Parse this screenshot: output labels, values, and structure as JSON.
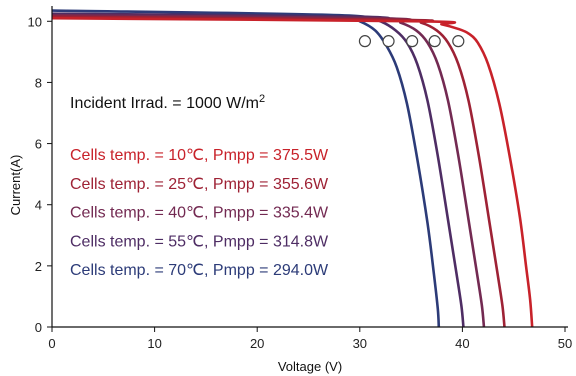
{
  "chart_data": {
    "type": "line",
    "xlabel": "Voltage  (V)",
    "ylabel": "Current(A)",
    "xlim": [
      0,
      50
    ],
    "ylim": [
      0,
      10.5
    ],
    "x_ticks": [
      "0",
      "10",
      "20",
      "30",
      "40",
      "50"
    ],
    "y_ticks": [
      "0",
      "2",
      "4",
      "6",
      "8",
      "10"
    ],
    "grid": false,
    "irradiance_label": "Incident Irrad. = 1000 W/m",
    "irradiance_sup": "2",
    "series": [
      {
        "name": "Cells temp. = 10℃, Pmpp = 375.5W",
        "color": "#c8222a",
        "points": [
          [
            0,
            10.1
          ],
          [
            36,
            10.0
          ],
          [
            38,
            9.9
          ],
          [
            39.6,
            9.75
          ],
          [
            40.6,
            9.6
          ],
          [
            41.5,
            9.3
          ],
          [
            42.5,
            8.6
          ],
          [
            43.6,
            7.3
          ],
          [
            44.6,
            5.6
          ],
          [
            45.6,
            3.6
          ],
          [
            46.2,
            2.0
          ],
          [
            46.6,
            0.9
          ],
          [
            46.8,
            0
          ]
        ],
        "mpp": [
          39.6,
          9.35
        ]
      },
      {
        "name": "Cells temp. = 25℃, Pmpp = 355.6W",
        "color": "#9e2235",
        "points": [
          [
            0,
            10.15
          ],
          [
            34,
            10.05
          ],
          [
            36,
            9.95
          ],
          [
            37.5,
            9.7
          ],
          [
            38.6,
            9.3
          ],
          [
            39.6,
            8.6
          ],
          [
            40.6,
            7.4
          ],
          [
            41.6,
            5.6
          ],
          [
            42.6,
            3.5
          ],
          [
            43.4,
            1.8
          ],
          [
            43.9,
            0.7
          ],
          [
            44.1,
            0
          ]
        ],
        "mpp": [
          37.3,
          9.35
        ]
      },
      {
        "name": "Cells temp. = 40℃, Pmpp = 335.4W",
        "color": "#732a52",
        "points": [
          [
            0,
            10.2
          ],
          [
            32,
            10.1
          ],
          [
            34,
            9.95
          ],
          [
            35.5,
            9.7
          ],
          [
            36.6,
            9.3
          ],
          [
            37.6,
            8.6
          ],
          [
            38.6,
            7.4
          ],
          [
            39.6,
            5.6
          ],
          [
            40.6,
            3.5
          ],
          [
            41.4,
            1.8
          ],
          [
            41.9,
            0.7
          ],
          [
            42.1,
            0
          ]
        ],
        "mpp": [
          35.1,
          9.35
        ]
      },
      {
        "name": "Cells temp. = 55℃, Pmpp = 314.8W",
        "color": "#4e2d64",
        "points": [
          [
            0,
            10.25
          ],
          [
            30,
            10.15
          ],
          [
            32,
            10.0
          ],
          [
            33.5,
            9.7
          ],
          [
            34.6,
            9.3
          ],
          [
            35.6,
            8.6
          ],
          [
            36.6,
            7.4
          ],
          [
            37.6,
            5.6
          ],
          [
            38.6,
            3.5
          ],
          [
            39.4,
            1.8
          ],
          [
            39.9,
            0.7
          ],
          [
            40.1,
            0
          ]
        ],
        "mpp": [
          32.8,
          9.35
        ]
      },
      {
        "name": "Cells temp. = 70℃, Pmpp = 294.0W",
        "color": "#2c3b78",
        "points": [
          [
            0,
            10.35
          ],
          [
            28,
            10.2
          ],
          [
            30,
            10.0
          ],
          [
            31.5,
            9.7
          ],
          [
            32.6,
            9.2
          ],
          [
            33.6,
            8.5
          ],
          [
            34.6,
            7.3
          ],
          [
            35.6,
            5.5
          ],
          [
            36.6,
            3.4
          ],
          [
            37.2,
            1.8
          ],
          [
            37.6,
            0.6
          ],
          [
            37.7,
            0
          ]
        ],
        "mpp": [
          30.5,
          9.35
        ]
      }
    ]
  }
}
